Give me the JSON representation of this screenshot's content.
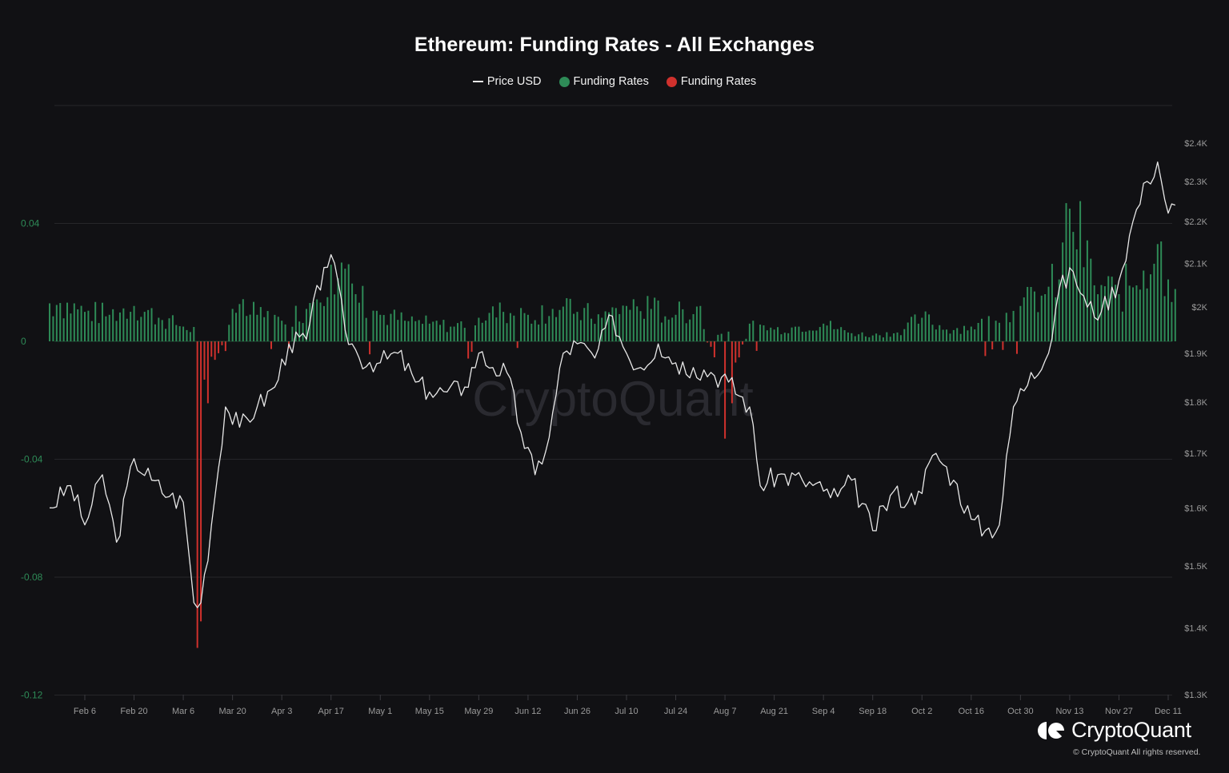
{
  "header": {
    "title": "Ethereum: Funding Rates - All Exchanges"
  },
  "legend": [
    {
      "label": "Price USD",
      "type": "line",
      "color": "#e8e8e8"
    },
    {
      "label": "Funding Rates",
      "type": "dot",
      "color": "#2e8b57"
    },
    {
      "label": "Funding Rates",
      "type": "dot",
      "color": "#d0312d"
    }
  ],
  "colors": {
    "background": "#111114",
    "positive": "#2e8b57",
    "negative": "#d0312d",
    "price_line": "#e8e8e8",
    "grid": "#26262a"
  },
  "watermark": "CryptoQuant",
  "footer": {
    "brand": "CryptoQuant",
    "copyright": "© CryptoQuant All rights reserved."
  },
  "chart_data": {
    "type": "bar",
    "title": "Ethereum: Funding Rates - All Exchanges",
    "xlabel": "",
    "ylabel_left": "Funding Rates",
    "ylabel_right": "Price USD",
    "ylim_left": [
      -0.12,
      0.08
    ],
    "left_ticks": [
      "0.04",
      "0",
      "-0.04",
      "-0.08",
      "-0.12"
    ],
    "right_ticks": [
      "$2.4K",
      "$2.3K",
      "$2.2K",
      "$2.1K",
      "$2K",
      "$1.9K",
      "$1.8K",
      "$1.7K",
      "$1.6K",
      "$1.5K",
      "$1.4K",
      "$1.3K"
    ],
    "right_scale": "log",
    "ylim_right": [
      1300,
      2400
    ],
    "x_ticks": [
      "Feb 6",
      "Feb 20",
      "Mar 6",
      "Mar 20",
      "Apr 3",
      "Apr 17",
      "May 1",
      "May 15",
      "May 29",
      "Jun 12",
      "Jun 26",
      "Jul 10",
      "Jul 24",
      "Aug 7",
      "Aug 21",
      "Sep 4",
      "Sep 18",
      "Oct 2",
      "Oct 16",
      "Oct 30",
      "Nov 13",
      "Nov 27",
      "Dec 11"
    ],
    "grid": true,
    "legend_position": "top",
    "series": [
      {
        "name": "Funding Rates",
        "type": "bar",
        "note": "weekly samples (approx.), green when positive, red when negative",
        "x": [
          "Jan 30",
          "Feb 6",
          "Feb 13",
          "Feb 20",
          "Feb 27",
          "Mar 6",
          "Mar 10",
          "Mar 11",
          "Mar 12",
          "Mar 13",
          "Mar 20",
          "Mar 27",
          "Apr 3",
          "Apr 10",
          "Apr 17",
          "Apr 24",
          "May 1",
          "May 8",
          "May 15",
          "May 22",
          "May 29",
          "Jun 5",
          "Jun 12",
          "Jun 19",
          "Jun 26",
          "Jul 3",
          "Jul 10",
          "Jul 17",
          "Jul 24",
          "Jul 31",
          "Aug 7",
          "Aug 9",
          "Aug 14",
          "Aug 21",
          "Aug 28",
          "Sep 4",
          "Sep 11",
          "Sep 18",
          "Sep 25",
          "Oct 2",
          "Oct 9",
          "Oct 16",
          "Oct 23",
          "Oct 30",
          "Nov 6",
          "Nov 10",
          "Nov 13",
          "Nov 20",
          "Nov 27",
          "Dec 4",
          "Dec 8",
          "Dec 11"
        ],
        "values": [
          0.013,
          0.01,
          0.009,
          0.012,
          0.008,
          0.005,
          -0.104,
          -0.095,
          -0.013,
          -0.021,
          0.011,
          0.009,
          0.007,
          0.011,
          0.026,
          0.016,
          0.009,
          0.007,
          0.006,
          0.005,
          0.008,
          0.01,
          0.009,
          0.011,
          0.01,
          0.008,
          0.012,
          0.011,
          0.009,
          0.012,
          -0.033,
          -0.021,
          0.006,
          0.004,
          0.005,
          0.006,
          0.003,
          0.002,
          0.003,
          0.008,
          0.004,
          0.005,
          0.007,
          0.012,
          0.016,
          0.021,
          0.045,
          0.019,
          0.016,
          0.024,
          0.033,
          0.021
        ]
      },
      {
        "name": "Price USD",
        "type": "line",
        "note": "approximate readings on log scale",
        "x": [
          "Jan 27",
          "Feb 2",
          "Feb 6",
          "Feb 11",
          "Feb 15",
          "Feb 20",
          "Feb 25",
          "Mar 2",
          "Mar 6",
          "Mar 9",
          "Mar 11",
          "Mar 14",
          "Mar 18",
          "Mar 22",
          "Mar 27",
          "Apr 1",
          "Apr 5",
          "Apr 10",
          "Apr 15",
          "Apr 17",
          "Apr 21",
          "Apr 25",
          "May 1",
          "May 6",
          "May 11",
          "May 15",
          "May 20",
          "May 25",
          "May 29",
          "Jun 2",
          "Jun 6",
          "Jun 10",
          "Jun 14",
          "Jun 18",
          "Jun 22",
          "Jun 26",
          "Jul 1",
          "Jul 6",
          "Jul 10",
          "Jul 14",
          "Jul 19",
          "Jul 24",
          "Jul 29",
          "Aug 3",
          "Aug 8",
          "Aug 14",
          "Aug 17",
          "Aug 22",
          "Aug 29",
          "Sep 4",
          "Sep 8",
          "Sep 12",
          "Sep 18",
          "Sep 24",
          "Sep 28",
          "Oct 1",
          "Oct 6",
          "Oct 11",
          "Oct 16",
          "Oct 20",
          "Oct 24",
          "Oct 28",
          "Nov 2",
          "Nov 7",
          "Nov 10",
          "Nov 14",
          "Nov 18",
          "Nov 22",
          "Nov 27",
          "Dec 1",
          "Dec 5",
          "Dec 8",
          "Dec 11",
          "Dec 13"
        ],
        "values": [
          1600,
          1640,
          1570,
          1660,
          1540,
          1690,
          1650,
          1620,
          1610,
          1440,
          1440,
          1570,
          1790,
          1750,
          1790,
          1830,
          1920,
          1930,
          2090,
          2120,
          1950,
          1890,
          1880,
          1900,
          1840,
          1820,
          1820,
          1830,
          1900,
          1870,
          1860,
          1740,
          1660,
          1730,
          1900,
          1920,
          1890,
          1980,
          1900,
          1870,
          1920,
          1880,
          1870,
          1860,
          1840,
          1790,
          1640,
          1660,
          1650,
          1630,
          1620,
          1650,
          1560,
          1630,
          1610,
          1630,
          1700,
          1650,
          1580,
          1560,
          1570,
          1790,
          1860,
          1900,
          2040,
          2080,
          2000,
          1990,
          2060,
          2200,
          2300,
          2350,
          2220,
          2240
        ]
      }
    ]
  }
}
